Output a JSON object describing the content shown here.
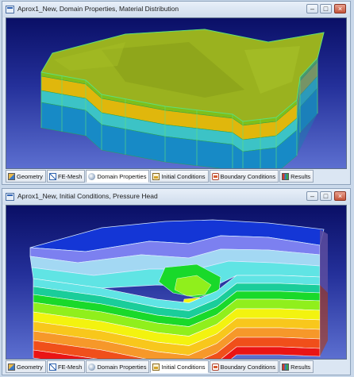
{
  "window_top": {
    "title": "Aprox1_New, Domain Properties, Material Distribution",
    "active_tab": "Domain Properties",
    "tabs": [
      {
        "label": "Geometry",
        "icon": "geometry-icon"
      },
      {
        "label": "FE-Mesh",
        "icon": "fe-mesh-icon"
      },
      {
        "label": "Domain Properties",
        "icon": "domain-properties-icon"
      },
      {
        "label": "Initial Conditions",
        "icon": "initial-conditions-icon"
      },
      {
        "label": "Boundary Conditions",
        "icon": "boundary-conditions-icon"
      },
      {
        "label": "Results",
        "icon": "results-icon"
      }
    ]
  },
  "window_bottom": {
    "title": "Aprox1_New, Initial Conditions, Pressure Head",
    "active_tab": "Initial Conditions",
    "tabs": [
      {
        "label": "Geometry",
        "icon": "geometry-icon"
      },
      {
        "label": "FE-Mesh",
        "icon": "fe-mesh-icon"
      },
      {
        "label": "Domain Properties",
        "icon": "domain-properties-icon"
      },
      {
        "label": "Initial Conditions",
        "icon": "initial-conditions-icon"
      },
      {
        "label": "Boundary Conditions",
        "icon": "boundary-conditions-icon"
      },
      {
        "label": "Results",
        "icon": "results-icon"
      }
    ]
  },
  "window_controls": {
    "minimize": "–",
    "maximize": "□",
    "close": "×"
  },
  "colors": {
    "background_top": "#0a0f66",
    "background_bottom": "#5c6fd0",
    "material_layers": [
      "#9ab21f",
      "#e0b70c",
      "#3cc3c6",
      "#178ac6"
    ],
    "pressure_head_bands": [
      "#1436d6",
      "#7c80f0",
      "#a3d8f3",
      "#60e4e4",
      "#1acd9a",
      "#19d92a",
      "#90ef1c",
      "#f3f30f",
      "#f8c71c",
      "#f6982a",
      "#f04f1a",
      "#ea1414"
    ]
  }
}
